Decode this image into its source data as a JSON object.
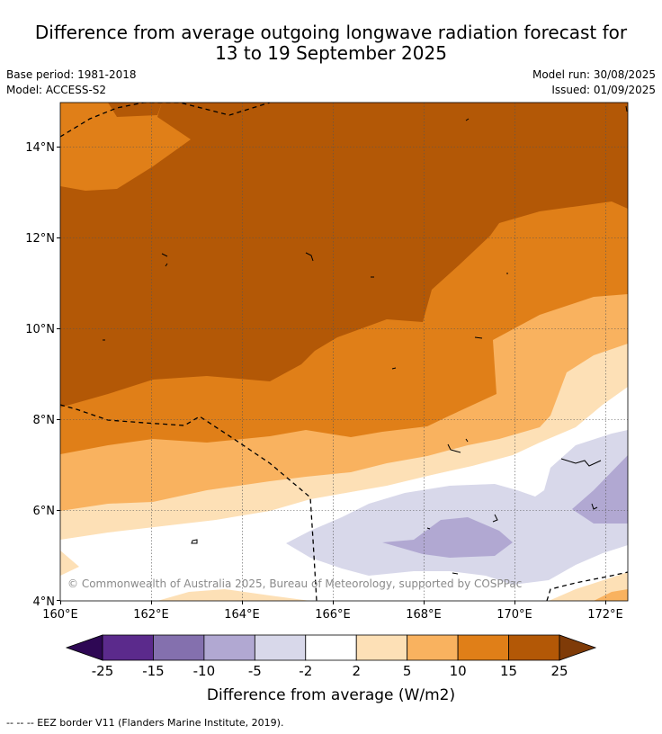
{
  "title_line1": "Difference from average outgoing longwave radiation forecast for",
  "title_line2": "13 to 19 September 2025",
  "base_period": "Base period: 1981-2018",
  "model": "Model: ACCESS-S2",
  "model_run": "Model run: 30/08/2025",
  "issued": "Issued: 01/09/2025",
  "copyright": "© Commonwealth of Australia 2025, Bureau of Meteorology, supported by COSPPac",
  "lat_labels": [
    "14°N",
    "12°N",
    "10°N",
    "8°N",
    "6°N",
    "4°N"
  ],
  "lon_labels": [
    "160°E",
    "162°E",
    "164°E",
    "166°E",
    "168°E",
    "170°E",
    "172°E"
  ],
  "colorbar": {
    "label": "Difference from average (W/m2)",
    "ticks": [
      "-25",
      "-15",
      "-10",
      "-5",
      "-2",
      "2",
      "5",
      "10",
      "15",
      "25"
    ],
    "colors": [
      "#2e0854",
      "#5b2a8c",
      "#8470ae",
      "#b1a8d2",
      "#d8d8ea",
      "#ffffff",
      "#fde0b6",
      "#f9b25f",
      "#e07f18",
      "#b35806",
      "#7f3b08"
    ]
  },
  "footnote": "--  --  -- EEZ border V11 (Flanders Marine Institute, 2019)."
}
